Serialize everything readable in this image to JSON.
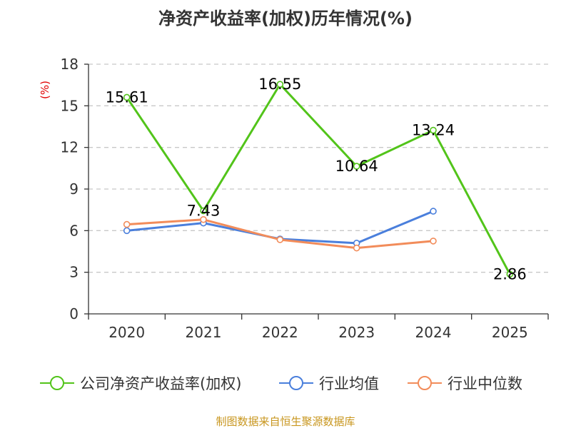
{
  "chart_data": {
    "type": "line",
    "title": "净资产收益率(加权)历年情况(%)",
    "ylabel": "(%)",
    "xlabel": "",
    "categories": [
      "2020",
      "2021",
      "2022",
      "2023",
      "2024",
      "2025"
    ],
    "ylim": [
      0,
      18
    ],
    "yticks": [
      0,
      3,
      6,
      9,
      12,
      15,
      18
    ],
    "series": [
      {
        "name": "公司净资产收益率(加权)",
        "color": "#52c41a",
        "values": [
          15.61,
          7.43,
          16.55,
          10.64,
          13.24,
          2.86
        ],
        "labels": [
          "15.61",
          "7.43",
          "16.55",
          "10.64",
          "13.24",
          "2.86"
        ]
      },
      {
        "name": "行业均值",
        "color": "#4a7fdc",
        "values": [
          6.0,
          6.55,
          5.4,
          5.1,
          7.4,
          null
        ]
      },
      {
        "name": "行业中位数",
        "color": "#f28c5a",
        "values": [
          6.45,
          6.8,
          5.35,
          4.75,
          5.25,
          null
        ]
      }
    ],
    "legend_position": "bottom",
    "grid": true
  },
  "source_note": "制图数据来自恒生聚源数据库"
}
